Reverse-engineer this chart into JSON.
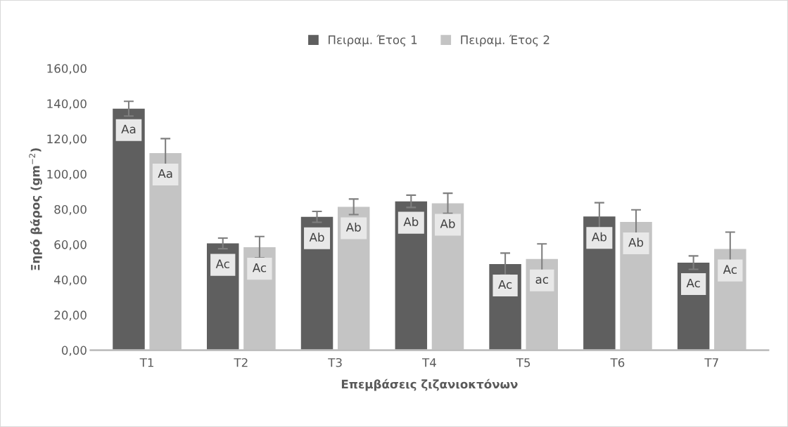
{
  "chart_data": {
    "type": "bar",
    "xlabel": "Επεμβάσεις ζιζανιοκτόνων",
    "ylabel": "Ξηρό βάρος (gm$^{−2}$)",
    "categories": [
      "T1",
      "T2",
      "T3",
      "T4",
      "T5",
      "T6",
      "T7"
    ],
    "series": [
      {
        "name": "Πειραμ. Έτος 1",
        "color": "#5f5f5f",
        "values": [
          137.1,
          60.6,
          75.7,
          84.5,
          48.9,
          75.9,
          49.7
        ],
        "errors": [
          4.2,
          3.0,
          3.1,
          3.5,
          6.2,
          7.8,
          3.8
        ],
        "value_labels": [
          "Aa",
          "Ac",
          "Ab",
          "Ab",
          "Ac",
          "Ab",
          "Ac"
        ]
      },
      {
        "name": "Πειραμ. Έτος 2",
        "color": "#c4c4c4",
        "values": [
          111.9,
          58.4,
          81.4,
          83.4,
          51.8,
          72.8,
          57.4
        ],
        "errors": [
          8.2,
          6.1,
          4.4,
          5.7,
          8.5,
          6.9,
          9.6
        ],
        "value_labels": [
          "Aa",
          "Ac",
          "Ab",
          "Ab",
          "ac",
          "Ab",
          "Ac"
        ]
      }
    ],
    "ylim": [
      0,
      160
    ],
    "yticks": [
      {
        "value": 0,
        "label": "0,00"
      },
      {
        "value": 20,
        "label": "20,00"
      },
      {
        "value": 40,
        "label": "40,00"
      },
      {
        "value": 60,
        "label": "60,00"
      },
      {
        "value": 80,
        "label": "80,00"
      },
      {
        "value": 100,
        "label": "100,00"
      },
      {
        "value": 120,
        "label": "120,00"
      },
      {
        "value": 140,
        "label": "140,00"
      },
      {
        "value": 160,
        "label": "160,00"
      }
    ],
    "grid": false,
    "legend": "top"
  }
}
